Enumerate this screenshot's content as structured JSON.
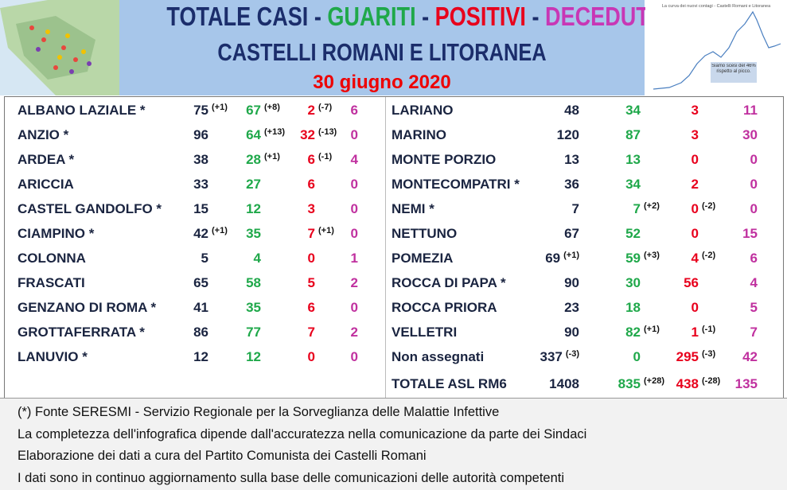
{
  "header": {
    "title": [
      "TOTALE CASI",
      "GUARITI",
      "POSITIVI",
      "DECEDUTI"
    ],
    "separator": "-",
    "subtitle": "CASTELLI ROMANI E LITORANEA",
    "date": "30 giugno 2020",
    "chart_caption": "La curva dei nuovi contagi - Castelli Romani e Litoranea",
    "chart_note": "Siamo scesi del 46% rispetto al picco."
  },
  "table": {
    "left": [
      {
        "name": "ALBANO LAZIALE *",
        "totale": 75,
        "totale_delta": "(+1)",
        "guariti": 67,
        "guariti_delta": "(+8)",
        "positivi": 2,
        "positivi_delta": "(-7)",
        "deceduti": 6
      },
      {
        "name": "ANZIO *",
        "totale": 96,
        "guariti": 64,
        "guariti_delta": "(+13)",
        "positivi": 32,
        "positivi_delta": "(-13)",
        "deceduti": 0
      },
      {
        "name": "ARDEA *",
        "totale": 38,
        "guariti": 28,
        "guariti_delta": "(+1)",
        "positivi": 6,
        "positivi_delta": "(-1)",
        "deceduti": 4
      },
      {
        "name": "ARICCIA",
        "totale": 33,
        "guariti": 27,
        "positivi": 6,
        "deceduti": 0
      },
      {
        "name": "CASTEL GANDOLFO *",
        "totale": 15,
        "guariti": 12,
        "positivi": 3,
        "deceduti": 0
      },
      {
        "name": "CIAMPINO *",
        "totale": 42,
        "totale_delta": "(+1)",
        "guariti": 35,
        "positivi": 7,
        "positivi_delta": "(+1)",
        "deceduti": 0
      },
      {
        "name": "COLONNA",
        "totale": 5,
        "guariti": 4,
        "positivi": 0,
        "deceduti": 1
      },
      {
        "name": "FRASCATI",
        "totale": 65,
        "guariti": 58,
        "positivi": 5,
        "deceduti": 2
      },
      {
        "name": "GENZANO DI ROMA *",
        "totale": 41,
        "guariti": 35,
        "positivi": 6,
        "deceduti": 0
      },
      {
        "name": "GROTTAFERRATA *",
        "totale": 86,
        "guariti": 77,
        "positivi": 7,
        "deceduti": 2
      },
      {
        "name": "LANUVIO *",
        "totale": 12,
        "guariti": 12,
        "positivi": 0,
        "deceduti": 0
      }
    ],
    "right": [
      {
        "name": "LARIANO",
        "totale": 48,
        "guariti": 34,
        "positivi": 3,
        "deceduti": 11
      },
      {
        "name": "MARINO",
        "totale": 120,
        "guariti": 87,
        "positivi": 3,
        "deceduti": 30
      },
      {
        "name": "MONTE PORZIO",
        "totale": 13,
        "guariti": 13,
        "positivi": 0,
        "deceduti": 0
      },
      {
        "name": "MONTECOMPATRI *",
        "totale": 36,
        "guariti": 34,
        "positivi": 2,
        "deceduti": 0
      },
      {
        "name": "NEMI *",
        "totale": 7,
        "guariti": 7,
        "guariti_delta": "(+2)",
        "positivi": 0,
        "positivi_delta": "(-2)",
        "deceduti": 0
      },
      {
        "name": "NETTUNO",
        "totale": 67,
        "guariti": 52,
        "positivi": 0,
        "deceduti": 15
      },
      {
        "name": "POMEZIA",
        "totale": 69,
        "totale_delta": "(+1)",
        "guariti": 59,
        "guariti_delta": "(+3)",
        "positivi": 4,
        "positivi_delta": "(-2)",
        "deceduti": 6
      },
      {
        "name": "ROCCA DI PAPA *",
        "totale": 90,
        "guariti": 30,
        "positivi": 56,
        "deceduti": 4
      },
      {
        "name": "ROCCA PRIORA",
        "totale": 23,
        "guariti": 18,
        "positivi": 0,
        "deceduti": 5
      },
      {
        "name": "VELLETRI",
        "totale": 90,
        "guariti": 82,
        "guariti_delta": "(+1)",
        "positivi": 1,
        "positivi_delta": "(-1)",
        "deceduti": 7
      },
      {
        "name": "Non assegnati",
        "totale": 337,
        "totale_delta": "(-3)",
        "guariti": 0,
        "positivi": 295,
        "positivi_delta": "(-3)",
        "deceduti": 42
      },
      {
        "name": "TOTALE ASL RM6",
        "totale": 1408,
        "guariti": 835,
        "guariti_delta": "(+28)",
        "positivi": 438,
        "positivi_delta": "(-28)",
        "deceduti": 135
      }
    ]
  },
  "footer": [
    "(*) Fonte SERESMI - Servizio Regionale per la Sorveglianza delle Malattie Infettive",
    "La completezza dell'infografica dipende dall'accuratezza nella comunicazione da parte dei Sindaci",
    "Elaborazione dei dati a cura del Partito Comunista dei Castelli Romani",
    "I dati sono in continuo aggiornamento sulla base delle comunicazioni delle autorità competenti"
  ]
}
